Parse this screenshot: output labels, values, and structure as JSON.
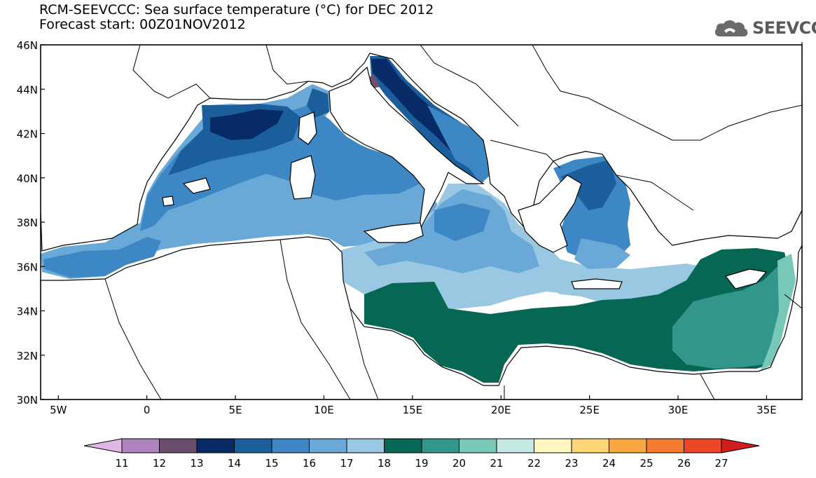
{
  "title": {
    "line1": "RCM-SEEVCCC: Sea surface temperature (°C) for DEC 2012",
    "line2": "Forecast start: 00Z01NOV2012"
  },
  "logo": {
    "text": "SEEVCCC",
    "icon": "cloud-icon"
  },
  "map": {
    "lat_labels": [
      "46N",
      "44N",
      "42N",
      "40N",
      "38N",
      "36N",
      "34N",
      "32N",
      "30N"
    ],
    "lon_labels": [
      "5W",
      "0",
      "5E",
      "10E",
      "15E",
      "20E",
      "25E",
      "30E",
      "35E"
    ],
    "lon_range": [
      -6,
      37
    ],
    "lat_range": [
      30,
      46
    ],
    "grid": false
  },
  "colorbar": {
    "ticks": [
      "11",
      "12",
      "13",
      "14",
      "15",
      "16",
      "17",
      "18",
      "19",
      "20",
      "21",
      "22",
      "23",
      "24",
      "25",
      "26",
      "27"
    ],
    "colors": [
      "#e2b7e3",
      "#ad84bd",
      "#6b4d6c",
      "#072b66",
      "#1b5e9c",
      "#3d88c4",
      "#6aa8d8",
      "#9ac8e3",
      "#056754",
      "#33968b",
      "#78c8b8",
      "#c4e8e2",
      "#fdf6c0",
      "#fdd677",
      "#f9a841",
      "#f57b33",
      "#ec4528",
      "#d21d1d"
    ]
  }
}
